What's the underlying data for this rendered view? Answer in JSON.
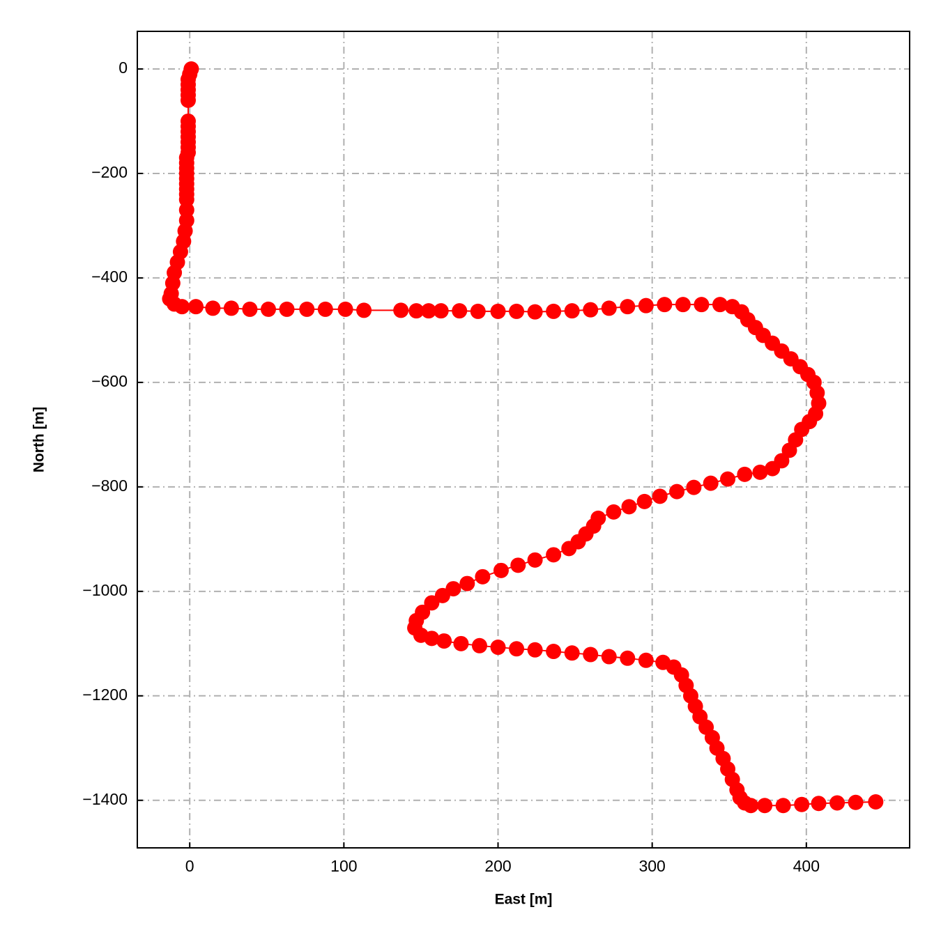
{
  "chart_data": {
    "type": "line",
    "xlabel": "East [m]",
    "ylabel": "North [m]",
    "color": "#ff0000",
    "marker": "circle",
    "grid": true,
    "xlim": [
      -34,
      467
    ],
    "ylim": [
      -1491,
      72
    ],
    "xticks": [
      0,
      100,
      200,
      300,
      400
    ],
    "yticks": [
      {
        "value": -1400,
        "label": "−1400"
      },
      {
        "value": -1200,
        "label": "−1200"
      },
      {
        "value": -1000,
        "label": "−1000"
      },
      {
        "value": -800,
        "label": "−800"
      },
      {
        "value": -600,
        "label": "−600"
      },
      {
        "value": -400,
        "label": "−400"
      },
      {
        "value": -200,
        "label": "−200"
      },
      0
    ],
    "x": [
      1,
      0,
      -1,
      -1,
      -1,
      -1,
      -1,
      -1,
      -1,
      -1,
      -1,
      -1,
      -1,
      -1,
      -2,
      -2,
      -2,
      -2,
      -2,
      -2,
      -2,
      -2,
      -2,
      -2,
      -2,
      -3,
      -4,
      -6,
      -8,
      -10,
      -11,
      -12,
      -13,
      -10,
      -5,
      4,
      15,
      27,
      39,
      51,
      63,
      76,
      88,
      101,
      113,
      137,
      147,
      155,
      163,
      175,
      187,
      200,
      212,
      224,
      236,
      248,
      260,
      272,
      284,
      296,
      308,
      320,
      332,
      344,
      352,
      358,
      362,
      367,
      372,
      378,
      384,
      390,
      396,
      401,
      405,
      407,
      408,
      406,
      402,
      397,
      393,
      389,
      384,
      378,
      370,
      360,
      349,
      338,
      327,
      316,
      305,
      295,
      285,
      275,
      265,
      262,
      257,
      252,
      246,
      236,
      224,
      213,
      202,
      190,
      180,
      171,
      164,
      157,
      151,
      147,
      146,
      150,
      157,
      165,
      176,
      188,
      200,
      212,
      224,
      236,
      248,
      260,
      272,
      284,
      296,
      307,
      314,
      319,
      322,
      325,
      328,
      331,
      335,
      339,
      342,
      346,
      349,
      352,
      355,
      357,
      360,
      364,
      373,
      385,
      397,
      408,
      420,
      432,
      445
    ],
    "values": [
      0,
      -10,
      -20,
      -30,
      -40,
      -50,
      -60,
      -100,
      -110,
      -120,
      -130,
      -140,
      -150,
      -160,
      -170,
      -180,
      -190,
      -200,
      -210,
      -220,
      -230,
      -240,
      -250,
      -270,
      -290,
      -310,
      -330,
      -350,
      -370,
      -390,
      -410,
      -430,
      -440,
      -450,
      -455,
      -455,
      -458,
      -458,
      -460,
      -460,
      -460,
      -460,
      -460,
      -460,
      -462,
      -462,
      -463,
      -463,
      -463,
      -463,
      -464,
      -464,
      -464,
      -465,
      -464,
      -463,
      -461,
      -458,
      -455,
      -453,
      -451,
      -451,
      -451,
      -451,
      -455,
      -465,
      -480,
      -495,
      -510,
      -525,
      -540,
      -555,
      -570,
      -585,
      -600,
      -620,
      -640,
      -660,
      -675,
      -690,
      -710,
      -730,
      -750,
      -765,
      -772,
      -776,
      -785,
      -793,
      -801,
      -809,
      -818,
      -828,
      -838,
      -848,
      -860,
      -875,
      -890,
      -905,
      -918,
      -930,
      -940,
      -950,
      -960,
      -972,
      -985,
      -995,
      -1008,
      -1022,
      -1040,
      -1056,
      -1070,
      -1084,
      -1090,
      -1095,
      -1100,
      -1104,
      -1107,
      -1110,
      -1112,
      -1115,
      -1118,
      -1121,
      -1125,
      -1128,
      -1132,
      -1136,
      -1145,
      -1160,
      -1180,
      -1200,
      -1220,
      -1240,
      -1260,
      -1280,
      -1300,
      -1320,
      -1340,
      -1360,
      -1380,
      -1395,
      -1405,
      -1410,
      -1410,
      -1410,
      -1408,
      -1406,
      -1405,
      -1404,
      -1403
    ]
  }
}
